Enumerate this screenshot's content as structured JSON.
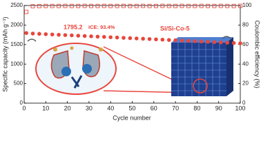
{
  "chart_data": {
    "type": "scatter",
    "xlabel": "Cycle number",
    "ylabel": "Specific capacity (mAh g⁻¹)",
    "y2label": "Coulombic efficiency (%)",
    "annotations": [
      "1795.2",
      "ICE: 93.4%",
      "Si/Si-Co-5"
    ],
    "xlim": [
      0,
      100
    ],
    "xticks": [
      0,
      10,
      20,
      30,
      40,
      50,
      60,
      70,
      80,
      90,
      100
    ],
    "ylim": [
      0,
      2500
    ],
    "yticks": [
      0,
      500,
      1000,
      1500,
      2000,
      2500
    ],
    "y2lim": [
      0,
      100
    ],
    "y2ticks": [
      0,
      20,
      40,
      60,
      80,
      100
    ],
    "x": [
      1,
      4,
      7,
      10,
      13,
      16,
      19,
      22,
      25,
      28,
      31,
      34,
      37,
      40,
      43,
      46,
      49,
      52,
      55,
      58,
      61,
      64,
      67,
      70,
      73,
      76,
      79,
      82,
      85,
      88,
      91,
      94,
      97,
      100
    ],
    "series": [
      {
        "name": "Specific capacity",
        "color": "#e8463c",
        "marker": "filled-circle",
        "values": [
          1795.2,
          1782,
          1774,
          1766,
          1758,
          1750,
          1743,
          1735,
          1727,
          1719,
          1711,
          1703,
          1696,
          1688,
          1680,
          1672,
          1664,
          1656,
          1649,
          1641,
          1633,
          1625,
          1617,
          1609,
          1602,
          1594,
          1586,
          1578,
          1570,
          1562,
          1555,
          1547,
          1539,
          1531
        ]
      },
      {
        "name": "Coulombic efficiency",
        "color": "#e8463c",
        "marker": "open-square",
        "axis": "y2",
        "values": [
          93.4,
          99.2,
          99.4,
          99.5,
          99.5,
          99.5,
          99.6,
          99.5,
          99.5,
          99.6,
          99.5,
          99.5,
          99.6,
          99.5,
          99.5,
          99.6,
          99.5,
          99.5,
          99.6,
          99.5,
          99.5,
          99.6,
          99.5,
          99.5,
          99.6,
          99.5,
          99.5,
          99.6,
          99.5,
          99.5,
          99.6,
          99.5,
          99.5,
          99.6
        ]
      }
    ]
  }
}
